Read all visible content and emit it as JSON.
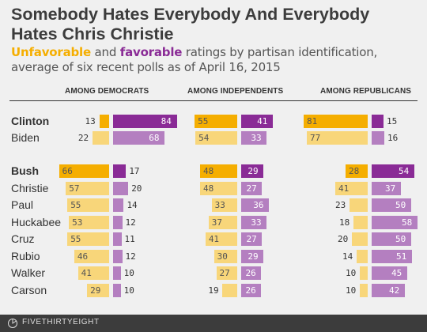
{
  "title": "Somebody Hates Everybody And Everybody Hates Chris Christie",
  "subtitle": {
    "unfavorable_word": "Unfavorable",
    "and_word": "and",
    "favorable_word": "favorable",
    "rest": "ratings by partisan identification, average of six recent polls as of April 16, 2015"
  },
  "footer": {
    "brand": "FIVETHIRTYEIGHT"
  },
  "colors": {
    "unfavorable": "#f5ae00",
    "unfavorable_light": "#f8d67a",
    "favorable": "#8a2b96",
    "favorable_light": "#b47fc0"
  },
  "chart_data": {
    "type": "bar",
    "groups": [
      "AMONG DEMOCRATS",
      "AMONG INDEPENDENTS",
      "AMONG REPUBLICANS"
    ],
    "series": [
      {
        "name": "Unfavorable"
      },
      {
        "name": "Favorable"
      }
    ],
    "candidates": [
      {
        "name": "Clinton",
        "bold": true,
        "democrats": [
          13,
          84
        ],
        "independents": [
          55,
          41
        ],
        "republicans": [
          81,
          15
        ]
      },
      {
        "name": "Biden",
        "bold": false,
        "democrats": [
          22,
          68
        ],
        "independents": [
          54,
          33
        ],
        "republicans": [
          77,
          16
        ]
      },
      {
        "name": "Bush",
        "bold": true,
        "democrats": [
          66,
          17
        ],
        "independents": [
          48,
          29
        ],
        "republicans": [
          28,
          54
        ]
      },
      {
        "name": "Christie",
        "bold": false,
        "democrats": [
          57,
          20
        ],
        "independents": [
          48,
          27
        ],
        "republicans": [
          41,
          37
        ]
      },
      {
        "name": "Paul",
        "bold": false,
        "democrats": [
          55,
          14
        ],
        "independents": [
          33,
          36
        ],
        "republicans": [
          23,
          50
        ]
      },
      {
        "name": "Huckabee",
        "bold": false,
        "democrats": [
          53,
          12
        ],
        "independents": [
          37,
          33
        ],
        "republicans": [
          18,
          58
        ]
      },
      {
        "name": "Cruz",
        "bold": false,
        "democrats": [
          55,
          11
        ],
        "independents": [
          41,
          27
        ],
        "republicans": [
          20,
          50
        ]
      },
      {
        "name": "Rubio",
        "bold": false,
        "democrats": [
          46,
          12
        ],
        "independents": [
          30,
          29
        ],
        "republicans": [
          14,
          51
        ]
      },
      {
        "name": "Walker",
        "bold": false,
        "democrats": [
          41,
          10
        ],
        "independents": [
          27,
          26
        ],
        "republicans": [
          10,
          45
        ]
      },
      {
        "name": "Carson",
        "bold": false,
        "democrats": [
          29,
          10
        ],
        "independents": [
          19,
          26
        ],
        "republicans": [
          10,
          42
        ]
      }
    ]
  }
}
